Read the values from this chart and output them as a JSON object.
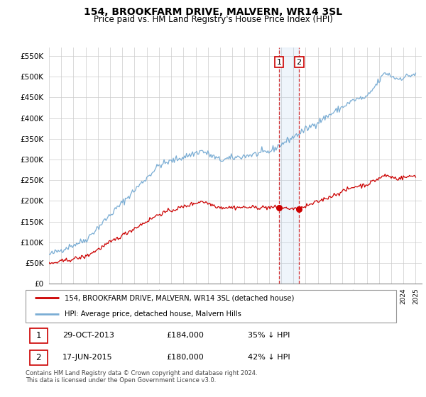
{
  "title": "154, BROOKFARM DRIVE, MALVERN, WR14 3SL",
  "subtitle": "Price paid vs. HM Land Registry's House Price Index (HPI)",
  "legend_line1": "154, BROOKFARM DRIVE, MALVERN, WR14 3SL (detached house)",
  "legend_line2": "HPI: Average price, detached house, Malvern Hills",
  "footnote": "Contains HM Land Registry data © Crown copyright and database right 2024.\nThis data is licensed under the Open Government Licence v3.0.",
  "transaction1_date": "29-OCT-2013",
  "transaction1_price": "£184,000",
  "transaction1_hpi": "35% ↓ HPI",
  "transaction2_date": "17-JUN-2015",
  "transaction2_price": "£180,000",
  "transaction2_hpi": "42% ↓ HPI",
  "sale_color": "#cc0000",
  "hpi_color": "#7aadd4",
  "marker1_x": 2013.83,
  "marker1_y": 184000,
  "marker2_x": 2015.46,
  "marker2_y": 180000,
  "vline1_x": 2013.83,
  "vline2_x": 2015.46,
  "ylim_min": 0,
  "ylim_max": 570000,
  "xmin": 1995.0,
  "xmax": 2025.5,
  "yticks": [
    0,
    50000,
    100000,
    150000,
    200000,
    250000,
    300000,
    350000,
    400000,
    450000,
    500000,
    550000
  ],
  "ytick_labels": [
    "£0",
    "£50K",
    "£100K",
    "£150K",
    "£200K",
    "£250K",
    "£300K",
    "£350K",
    "£400K",
    "£450K",
    "£500K",
    "£550K"
  ]
}
